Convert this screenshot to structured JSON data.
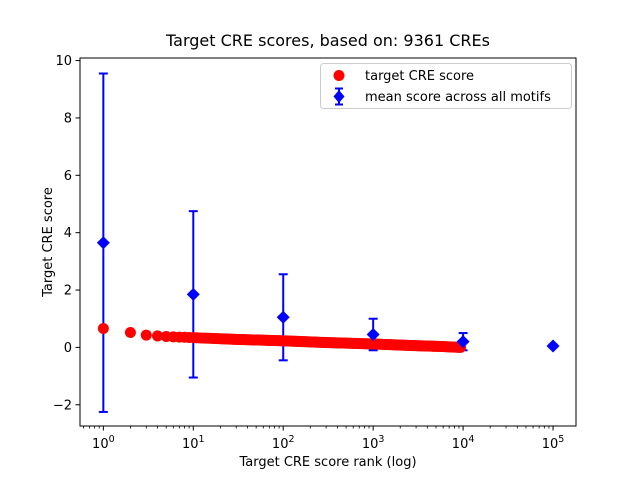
{
  "figure": {
    "background": "#ffffff"
  },
  "chart_data": {
    "type": "scatter",
    "title": "Target CRE scores, based on: 9361 CREs",
    "xlabel": "Target CRE score rank (log)",
    "ylabel": "Target CRE score",
    "x_scale": "log",
    "grid": false,
    "legend_position": "upper right",
    "xlim": [
      0.55,
      180000
    ],
    "ylim": [
      -2.74,
      10.09
    ],
    "x_ticks": [
      {
        "base": "10",
        "exponent": "0",
        "value": 1
      },
      {
        "base": "10",
        "exponent": "1",
        "value": 10
      },
      {
        "base": "10",
        "exponent": "2",
        "value": 100
      },
      {
        "base": "10",
        "exponent": "3",
        "value": 1000
      },
      {
        "base": "10",
        "exponent": "4",
        "value": 10000
      },
      {
        "base": "10",
        "exponent": "5",
        "value": 100000
      }
    ],
    "y_ticks": [
      {
        "value": -2,
        "label": "−2"
      },
      {
        "value": 0,
        "label": "0"
      },
      {
        "value": 2,
        "label": "2"
      },
      {
        "value": 4,
        "label": "4"
      },
      {
        "value": 6,
        "label": "6"
      },
      {
        "value": 8,
        "label": "8"
      },
      {
        "value": 10,
        "label": "10"
      }
    ],
    "series": [
      {
        "name": "target CRE score",
        "marker": "circle",
        "color": "#ff0000",
        "note": "scores for ranks 1..9361, dense decreasing band; anchor points read from plot",
        "anchor_ranks": [
          1,
          2,
          3,
          4,
          5,
          7,
          10,
          30,
          100,
          300,
          1000,
          3000,
          6000,
          9361
        ],
        "anchor_scores": [
          0.66,
          0.52,
          0.43,
          0.4,
          0.38,
          0.36,
          0.34,
          0.28,
          0.23,
          0.17,
          0.12,
          0.06,
          0.03,
          0.0
        ]
      },
      {
        "name": "mean score across all motifs",
        "marker": "diamond",
        "color": "#0000ff",
        "ranks": [
          1,
          10,
          100,
          1000,
          10000,
          100000
        ],
        "means": [
          3.65,
          1.85,
          1.05,
          0.45,
          0.2,
          0.05
        ],
        "errors": [
          5.9,
          2.9,
          1.5,
          0.55,
          0.3,
          0.05
        ]
      }
    ]
  }
}
